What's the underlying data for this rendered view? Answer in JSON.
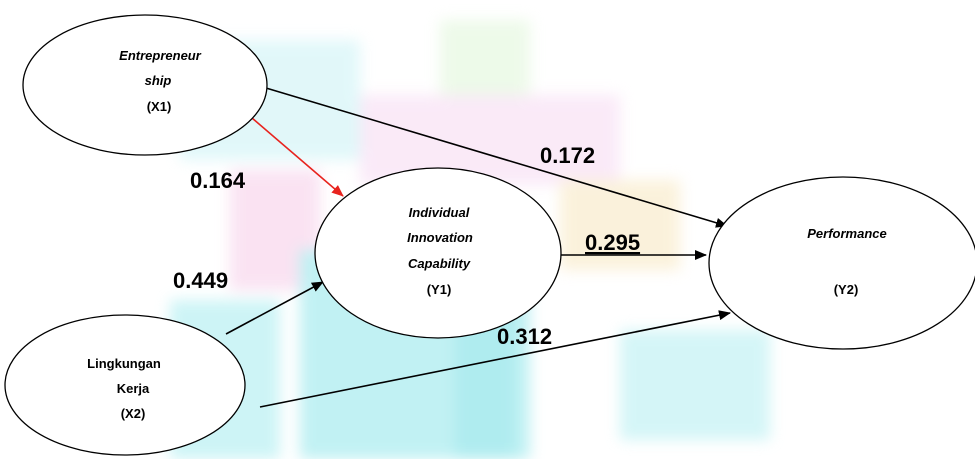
{
  "nodes": {
    "x1": {
      "line1": "Entrepreneur",
      "line2": "ship",
      "code": "(X1)"
    },
    "x2": {
      "line1": "Lingkungan",
      "line2": "Kerja",
      "code": "(X2)"
    },
    "y1": {
      "line1": "Individual",
      "line2": "Innovation",
      "line3": "Capability",
      "code": "(Y1)"
    },
    "y2": {
      "line1": "Performance",
      "code": "(Y2)"
    }
  },
  "paths": {
    "x1_y1": "0.164",
    "x1_y2": "0.172",
    "x2_y1": "0.449",
    "x2_y2": "0.312",
    "y1_y2": "0.295"
  },
  "colors": {
    "highlight_arrow": "#e8231e",
    "arrow": "#000000",
    "watermark_cyan": "#7fe3e8",
    "watermark_magenta": "#f3c6ef",
    "watermark_yellow": "#f7eec0"
  }
}
